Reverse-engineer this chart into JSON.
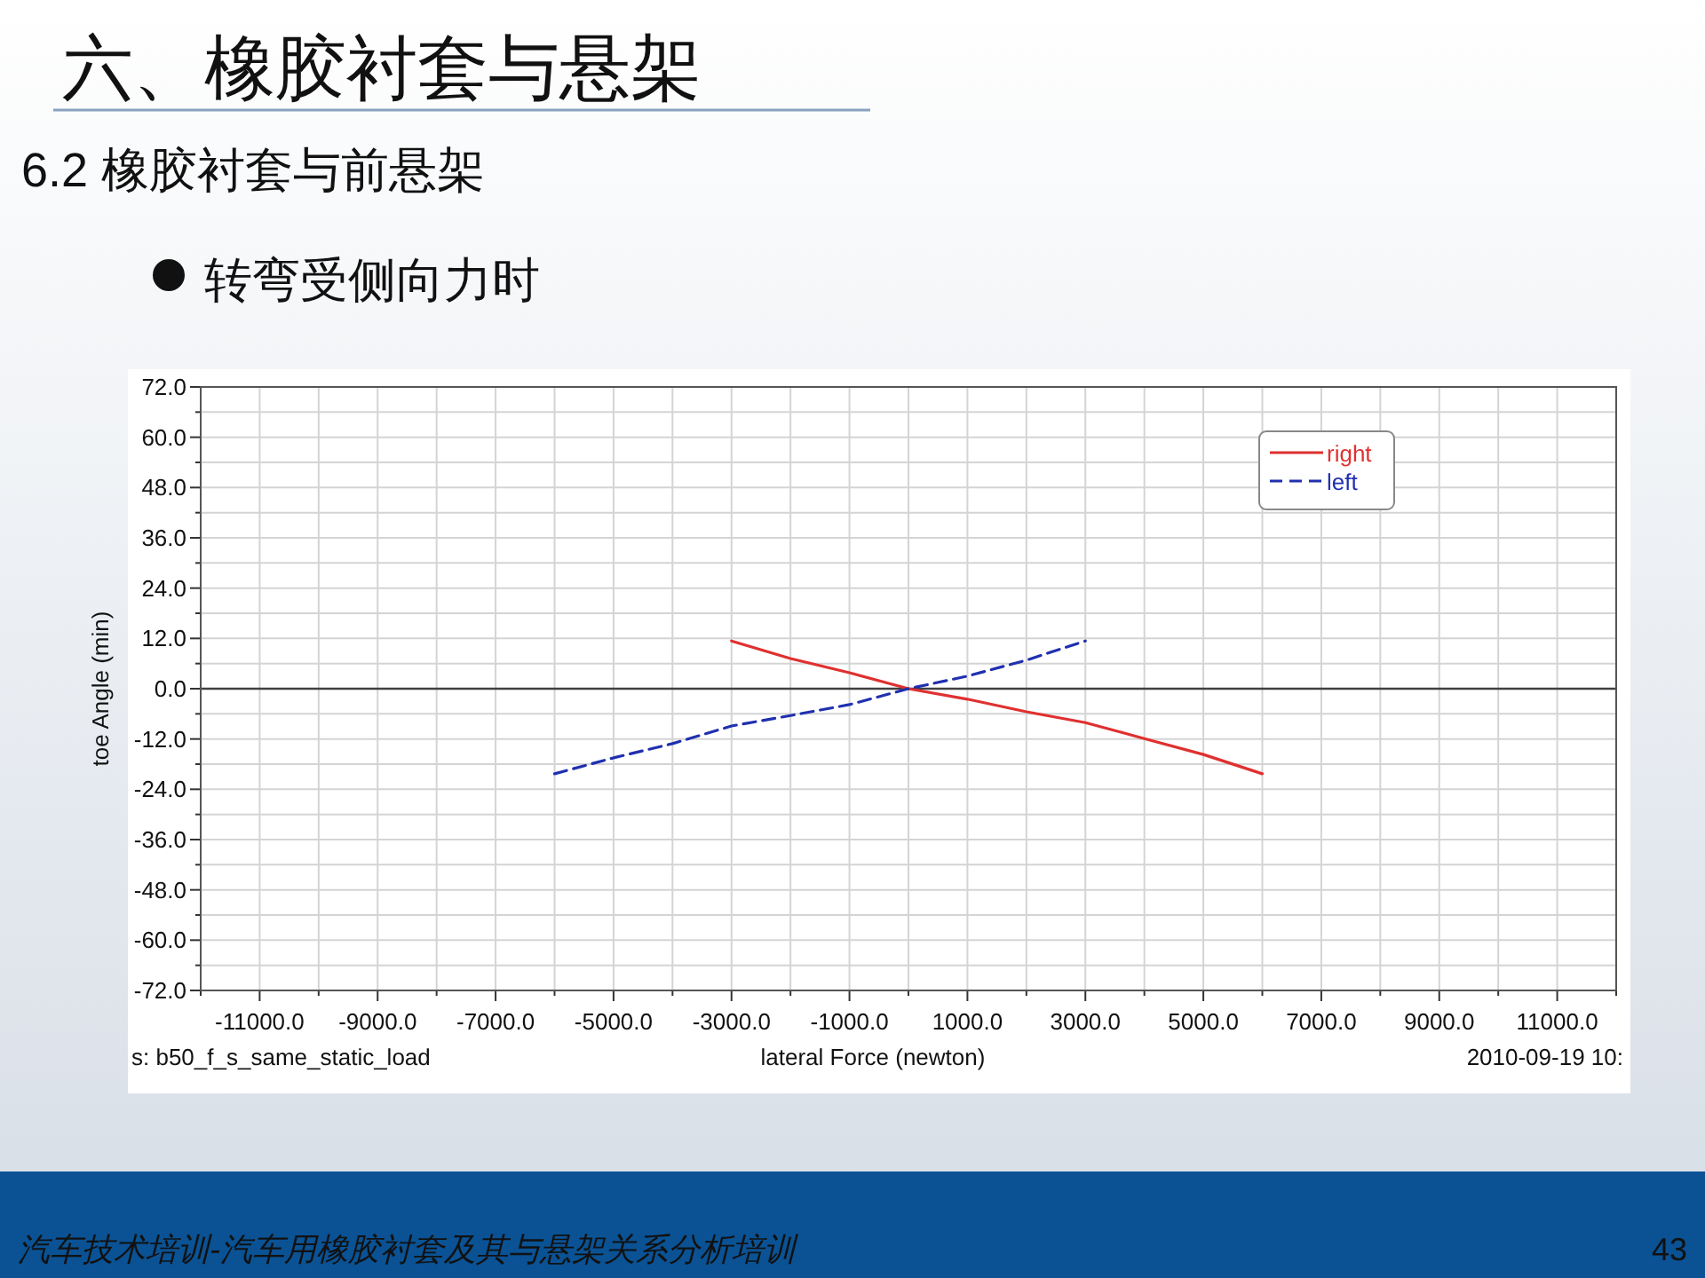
{
  "chart_data": {
    "type": "line",
    "title": "六、橡胶衬套与悬架",
    "subtitle": "6.2 橡胶衬套与前悬架",
    "xlabel": "lateral Force (newton)",
    "ylabel": "toe Angle (min)",
    "annotations": [
      "转弯受侧向力时",
      "s:  b50_f_s_same_static_load",
      "2010-09-19 10:",
      "汽车技术培训-汽车用橡胶衬套及其与悬架关系分析培训",
      "43"
    ],
    "x": [
      -6000,
      -5000,
      -4000,
      -3000,
      -2000,
      -1000,
      0,
      1000,
      2000,
      3000,
      4000,
      5000,
      6000
    ],
    "series": [
      {
        "name": "right",
        "color": "#e03030",
        "line_style": "solid",
        "values": [
          null,
          null,
          null,
          11.4,
          7.2,
          3.8,
          0,
          -2.5,
          -5.5,
          -8.1,
          -11.9,
          -15.7,
          -20.3
        ]
      },
      {
        "name": "left",
        "color": "#2030b0",
        "line_style": "dashed",
        "values": [
          -20.3,
          -16.5,
          -13.1,
          -8.9,
          -6.4,
          -3.8,
          0,
          3.0,
          6.8,
          11.4,
          null,
          null,
          null
        ]
      }
    ],
    "xlim": [
      -12000,
      12000
    ],
    "xticks": [
      {
        "value": -12000,
        "label": null
      },
      {
        "value": -11000,
        "label": "-11000.0"
      },
      {
        "value": -10000,
        "label": null
      },
      {
        "value": -9000,
        "label": "-9000.0"
      },
      {
        "value": -8000,
        "label": null
      },
      {
        "value": -7000,
        "label": "-7000.0"
      },
      {
        "value": -6000,
        "label": null
      },
      {
        "value": -5000,
        "label": "-5000.0"
      },
      {
        "value": -4000,
        "label": null
      },
      {
        "value": -3000,
        "label": "-3000.0"
      },
      {
        "value": -2000,
        "label": null
      },
      {
        "value": -1000,
        "label": "-1000.0"
      },
      {
        "value": 0,
        "label": null
      },
      {
        "value": 1000,
        "label": "1000.0"
      },
      {
        "value": 2000,
        "label": null
      },
      {
        "value": 3000,
        "label": "3000.0"
      },
      {
        "value": 4000,
        "label": null
      },
      {
        "value": 5000,
        "label": "5000.0"
      },
      {
        "value": 6000,
        "label": null
      },
      {
        "value": 7000,
        "label": "7000.0"
      },
      {
        "value": 8000,
        "label": null
      },
      {
        "value": 9000,
        "label": "9000.0"
      },
      {
        "value": 10000,
        "label": null
      },
      {
        "value": 11000,
        "label": "11000.0"
      },
      {
        "value": 12000,
        "label": null
      }
    ],
    "ylim": [
      -72,
      72
    ],
    "yticks": [
      {
        "value": -72,
        "label": "-72.0"
      },
      {
        "value": -66,
        "label": null
      },
      {
        "value": -60,
        "label": "-60.0"
      },
      {
        "value": -54,
        "label": null
      },
      {
        "value": -48,
        "label": "-48.0"
      },
      {
        "value": -42,
        "label": null
      },
      {
        "value": -36,
        "label": "-36.0"
      },
      {
        "value": -30,
        "label": null
      },
      {
        "value": -24,
        "label": "-24.0"
      },
      {
        "value": -18,
        "label": null
      },
      {
        "value": -12,
        "label": "-12.0"
      },
      {
        "value": -6,
        "label": null
      },
      {
        "value": 0,
        "label": "0.0"
      },
      {
        "value": 6,
        "label": null
      },
      {
        "value": 12,
        "label": "12.0"
      },
      {
        "value": 18,
        "label": null
      },
      {
        "value": 24,
        "label": "24.0"
      },
      {
        "value": 30,
        "label": null
      },
      {
        "value": 36,
        "label": "36.0"
      },
      {
        "value": 42,
        "label": null
      },
      {
        "value": 48,
        "label": "48.0"
      },
      {
        "value": 54,
        "label": null
      },
      {
        "value": 60,
        "label": "60.0"
      },
      {
        "value": 66,
        "label": null
      },
      {
        "value": 72,
        "label": "72.0"
      }
    ],
    "ref_lines": [
      {
        "axis": "y",
        "value": 0,
        "label": null,
        "color": "#404040"
      }
    ],
    "grid": true,
    "legend": "top right",
    "marker": "none"
  }
}
